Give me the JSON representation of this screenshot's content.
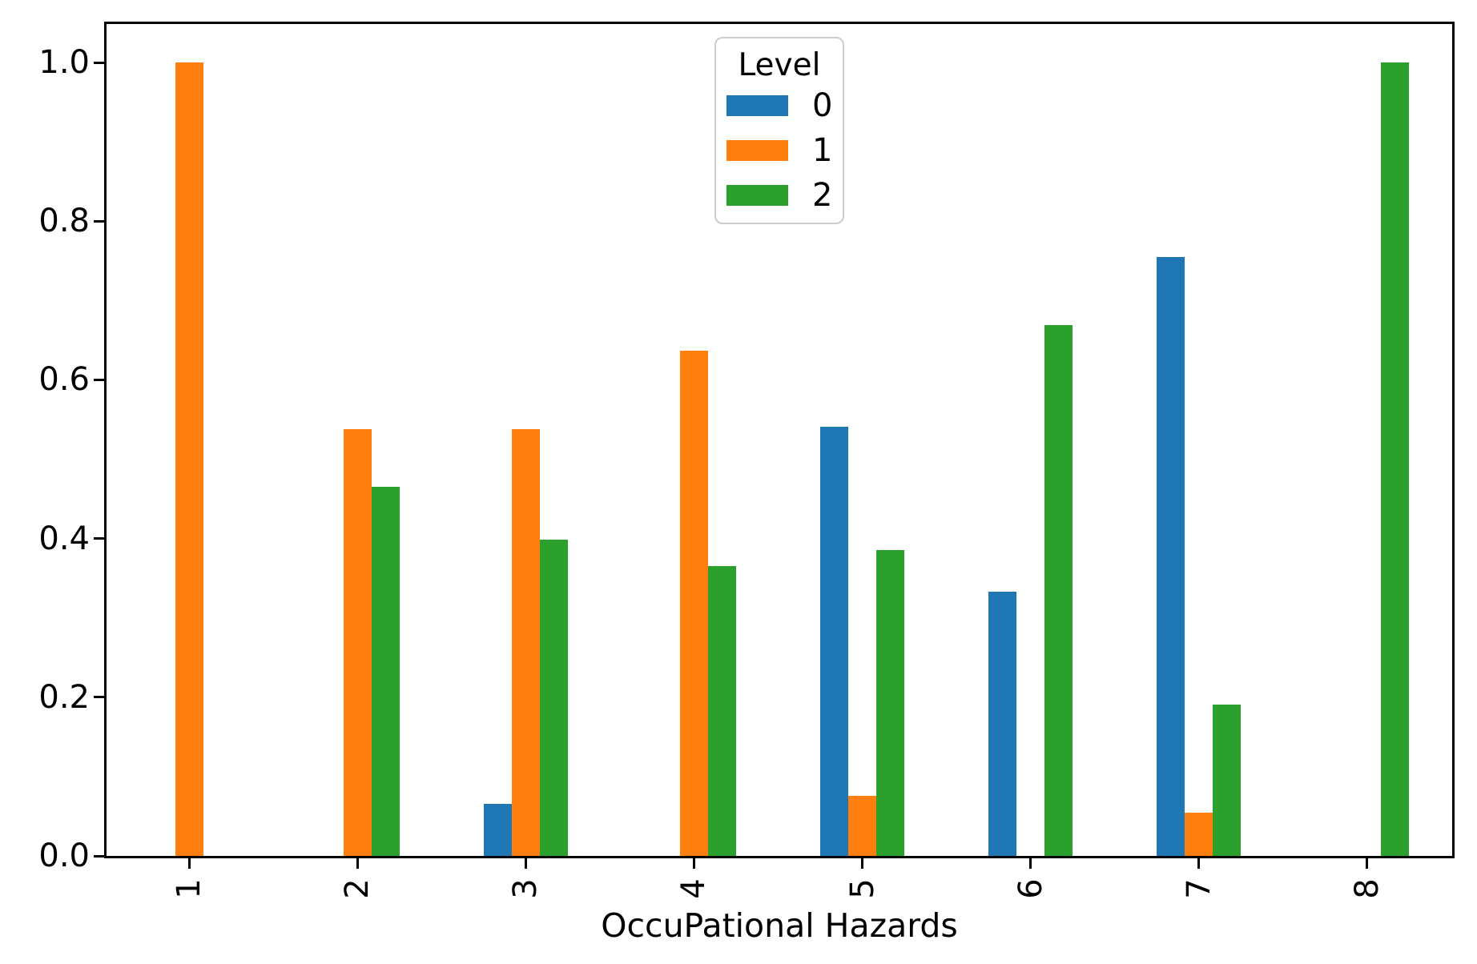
{
  "chart_data": {
    "type": "bar",
    "title": "",
    "xlabel": "OccuPational Hazards",
    "ylabel": "",
    "categories": [
      "1",
      "2",
      "3",
      "4",
      "5",
      "6",
      "7",
      "8"
    ],
    "series": [
      {
        "name": "0",
        "color": "#1f77b4",
        "values": [
          0,
          0,
          0.066,
          0,
          0.541,
          0.333,
          0.755,
          0
        ]
      },
      {
        "name": "1",
        "color": "#ff7f0e",
        "values": [
          1.0,
          0.538,
          0.538,
          0.637,
          0.076,
          0,
          0.054,
          0
        ]
      },
      {
        "name": "2",
        "color": "#2ca02c",
        "values": [
          0,
          0.465,
          0.399,
          0.365,
          0.385,
          0.669,
          0.191,
          1.0
        ]
      }
    ],
    "yticks": [
      "0.0",
      "0.2",
      "0.4",
      "0.6",
      "0.8",
      "1.0"
    ],
    "ylim": [
      0,
      1.048
    ],
    "xtick_rotation": 90,
    "grid": false,
    "legend": {
      "title": "Level",
      "position": "upper center"
    }
  }
}
